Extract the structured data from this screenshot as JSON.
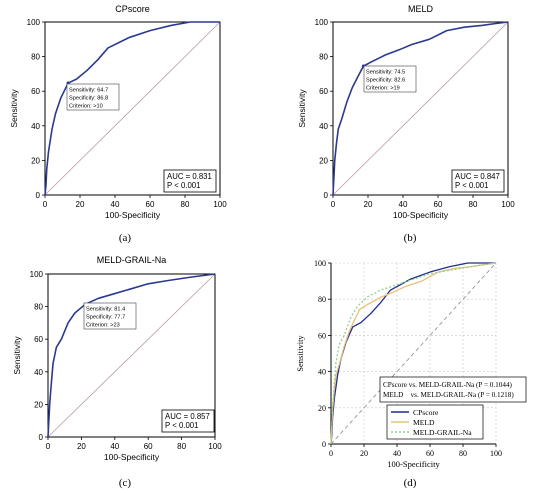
{
  "chart_data": [
    {
      "type": "line",
      "panel": "(a)",
      "title": "CPscore",
      "xlabel": "100-Specificity",
      "ylabel": "Sensitivity",
      "xlim": [
        0,
        100
      ],
      "ylim": [
        0,
        100
      ],
      "xticks": [
        "0",
        "20",
        "40",
        "60",
        "80",
        "100"
      ],
      "yticks": [
        "0",
        "20",
        "40",
        "60",
        "80",
        "100"
      ],
      "grid": false,
      "series": [
        {
          "color": "#2b3990",
          "x": [
            0,
            0.5,
            1,
            2,
            4,
            6,
            9,
            13.2,
            18,
            24,
            30,
            36,
            48,
            60,
            72,
            83,
            100
          ],
          "y": [
            0,
            5,
            15,
            25,
            38,
            47,
            56,
            64.7,
            67,
            72,
            78,
            85,
            91,
            95,
            98,
            100,
            100
          ]
        }
      ],
      "diagonal": true,
      "criterion_box": {
        "lines": [
          "Sensitivity: 64.7",
          "Specificity: 86.8",
          "Criterion: >10"
        ]
      },
      "auc_box": {
        "lines": [
          "AUC = 0.831",
          "P < 0.001"
        ]
      }
    },
    {
      "type": "line",
      "panel": "(b)",
      "title": "MELD",
      "xlabel": "100-Specificity",
      "ylabel": "Sensitivity",
      "xlim": [
        0,
        100
      ],
      "ylim": [
        0,
        100
      ],
      "xticks": [
        "0",
        "20",
        "40",
        "60",
        "80",
        "100"
      ],
      "yticks": [
        "0",
        "20",
        "40",
        "60",
        "80",
        "100"
      ],
      "grid": false,
      "series": [
        {
          "color": "#2b3990",
          "x": [
            0,
            0.5,
            1,
            2,
            3,
            5,
            8,
            11,
            14,
            17.4,
            22,
            30,
            38,
            45,
            55,
            65,
            75,
            85,
            92,
            100
          ],
          "y": [
            0,
            10,
            20,
            30,
            38,
            44,
            54,
            62,
            68,
            74.5,
            77,
            81,
            84,
            87,
            90,
            95,
            97,
            98,
            99,
            100
          ]
        }
      ],
      "diagonal": true,
      "criterion_box": {
        "lines": [
          "Sensitivity: 74.5",
          "Specificity: 82.6",
          "Criterion: >19"
        ]
      },
      "auc_box": {
        "lines": [
          "AUC = 0.847",
          "P < 0.001"
        ]
      }
    },
    {
      "type": "line",
      "panel": "(c)",
      "title": "MELD-GRAIL-Na",
      "xlabel": "100-Specificity",
      "ylabel": "Sensitivity",
      "xlim": [
        0,
        100
      ],
      "ylim": [
        0,
        100
      ],
      "xticks": [
        "0",
        "20",
        "40",
        "60",
        "80",
        "100"
      ],
      "yticks": [
        "0",
        "20",
        "40",
        "60",
        "80",
        "100"
      ],
      "grid": false,
      "series": [
        {
          "color": "#2b3990",
          "x": [
            0,
            0.5,
            1,
            2,
            3,
            5,
            8,
            12,
            16,
            22.3,
            30,
            40,
            50,
            60,
            72,
            85,
            100
          ],
          "y": [
            0,
            10,
            20,
            33,
            45,
            55,
            60,
            70,
            76,
            81.4,
            85,
            88,
            91,
            94,
            96,
            98,
            100
          ]
        }
      ],
      "diagonal": true,
      "criterion_box": {
        "lines": [
          "Sensitivity: 81.4",
          "Specificity: 77.7",
          "Criterion: >23"
        ]
      },
      "auc_box": {
        "lines": [
          "AUC = 0.857",
          "P < 0.001"
        ]
      }
    },
    {
      "type": "line",
      "panel": "(d)",
      "xlabel": "100-Specificity",
      "ylabel": "Sensitivity",
      "xlim": [
        0,
        100
      ],
      "ylim": [
        0,
        100
      ],
      "xticks": [
        "0",
        "20",
        "40",
        "60",
        "80",
        "100"
      ],
      "yticks": [
        "0",
        "20",
        "40",
        "60",
        "80",
        "100"
      ],
      "grid": true,
      "series": [
        {
          "name": "CPscore",
          "color": "#1f2e8c",
          "dash": "",
          "x": [
            0,
            0.5,
            1,
            2,
            4,
            6,
            9,
            13.2,
            18,
            24,
            30,
            36,
            48,
            60,
            72,
            83,
            100
          ],
          "y": [
            0,
            5,
            15,
            25,
            38,
            47,
            56,
            64.7,
            67,
            72,
            78,
            85,
            91,
            95,
            98,
            100,
            100
          ]
        },
        {
          "name": "MELD",
          "color": "#e8c07a",
          "dash": "",
          "x": [
            0,
            0.5,
            1,
            2,
            3,
            5,
            8,
            11,
            14,
            17.4,
            22,
            30,
            38,
            45,
            55,
            65,
            75,
            85,
            92,
            100
          ],
          "y": [
            0,
            10,
            20,
            30,
            38,
            44,
            54,
            62,
            68,
            74.5,
            77,
            81,
            84,
            87,
            90,
            95,
            97,
            98,
            99,
            100
          ]
        },
        {
          "name": "MELD-GRAIL-Na",
          "color": "#8fd18f",
          "dash": "2 2",
          "x": [
            0,
            0.5,
            1,
            2,
            3,
            5,
            8,
            12,
            16,
            22.3,
            30,
            40,
            50,
            60,
            72,
            85,
            100
          ],
          "y": [
            0,
            10,
            20,
            33,
            45,
            55,
            60,
            70,
            76,
            81.4,
            85,
            88,
            91,
            94,
            96,
            98,
            100
          ]
        }
      ],
      "diagonal": true,
      "stats_box": {
        "lines": [
          "CPscore vs. MELD-GRAIL-Na (P = 0.1044)",
          "MELD    vs. MELD-GRAIL-Na (P = 0.1218)"
        ]
      },
      "legend": {
        "position": "bottom-right",
        "entries": [
          "CPscore",
          "MELD",
          "MELD-GRAIL-Na"
        ]
      }
    }
  ]
}
